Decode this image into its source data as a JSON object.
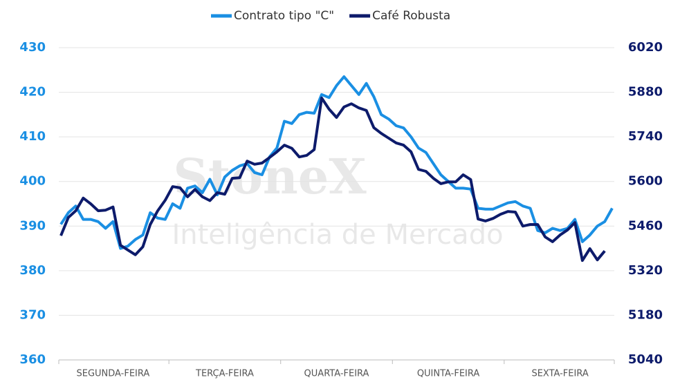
{
  "chart_data": {
    "type": "line",
    "annotations": {
      "brand": "StoneX",
      "tagline": "Inteligência de Mercado"
    },
    "categories": [
      null,
      null,
      null,
      null,
      null,
      null,
      null,
      "SEGUNDA-FEIRA",
      null,
      null,
      null,
      null,
      null,
      null,
      null,
      null,
      null,
      null,
      null,
      null,
      null,
      null,
      "TERÇA-FEIRA",
      null,
      null,
      null,
      null,
      null,
      null,
      null,
      null,
      null,
      null,
      null,
      null,
      null,
      null,
      "QUARTA-FEIRA",
      null,
      null,
      null,
      null,
      null,
      null,
      null,
      null,
      null,
      null,
      null,
      null,
      null,
      null,
      "QUINTA-FEIRA",
      null,
      null,
      null,
      null,
      null,
      null,
      null,
      null,
      null,
      null,
      null,
      null,
      null,
      null,
      "SEXTA-FEIRA",
      null,
      null,
      null,
      null,
      null,
      null,
      null
    ],
    "series": [
      {
        "name": "Contrato tipo \"C\"",
        "color": "#1a8fe3",
        "axis": "y",
        "values": [
          390.4,
          393,
          394.5,
          391.5,
          391.5,
          391,
          389.5,
          391,
          385,
          385.5,
          387,
          388,
          393,
          391.8,
          391.5,
          395,
          394,
          398.5,
          399,
          397.5,
          400.5,
          397,
          401,
          402.5,
          403.5,
          404,
          402,
          401.5,
          405.5,
          407.5,
          413.5,
          413,
          415,
          415.5,
          415.3,
          419.5,
          418.8,
          421.5,
          423.5,
          421.5,
          419.5,
          422,
          419,
          415,
          414,
          412.5,
          412,
          410,
          407.5,
          406.5,
          404,
          401.5,
          400,
          398.5,
          398.5,
          398.3,
          394,
          393.8,
          393.8,
          394.5,
          395.2,
          395.5,
          394.5,
          394,
          389,
          388.5,
          389.5,
          389,
          389.5,
          391.5,
          386.5,
          388,
          390,
          391,
          394
        ]
      },
      {
        "name": "Café Robusta",
        "color": "#0d1b6b",
        "axis": "y2",
        "values": [
          5430,
          5487,
          5508,
          5548,
          5530,
          5508,
          5510,
          5520,
          5400,
          5385,
          5370,
          5395,
          5465,
          5508,
          5541,
          5584,
          5580,
          5552,
          5575,
          5552,
          5540,
          5565,
          5560,
          5610,
          5612,
          5664,
          5654,
          5658,
          5675,
          5693,
          5714,
          5704,
          5677,
          5682,
          5700,
          5862,
          5827,
          5801,
          5834,
          5844,
          5831,
          5823,
          5769,
          5751,
          5736,
          5721,
          5714,
          5693,
          5638,
          5632,
          5610,
          5593,
          5599,
          5599,
          5621,
          5606,
          5482,
          5476,
          5484,
          5497,
          5506,
          5504,
          5460,
          5465,
          5465,
          5426,
          5411,
          5432,
          5448,
          5471,
          5352,
          5389,
          5354,
          5382,
          null
        ]
      }
    ],
    "ylim": [
      360,
      430
    ],
    "yticks": [
      360,
      370,
      380,
      390,
      400,
      410,
      420,
      430
    ],
    "y2lim": [
      5040,
      6020
    ],
    "y2ticks": [
      5040,
      5180,
      5320,
      5460,
      5600,
      5740,
      5880,
      6020
    ],
    "grid": true,
    "legend": "top"
  }
}
